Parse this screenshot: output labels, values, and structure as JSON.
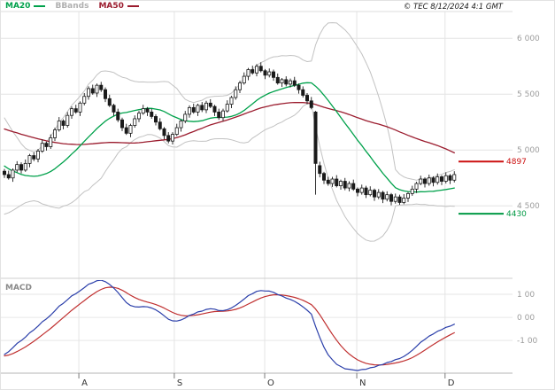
{
  "header": {
    "legend": [
      {
        "label": "MA20",
        "color": "#00a14b"
      },
      {
        "label": "BBands",
        "color": "#b0b0b0"
      },
      {
        "label": "MA50",
        "color": "#9b1c2e"
      }
    ],
    "copyright": "© TEC 8/12/2024 4:1 GMT"
  },
  "chart_data": {
    "type": "candlestick",
    "x_axis": {
      "unit": "month",
      "label_color": "#333333",
      "ticks": [
        {
          "label": "A",
          "index": 17.7
        },
        {
          "label": "S",
          "index": 40.4
        },
        {
          "label": "O",
          "index": 61.9
        },
        {
          "label": "N",
          "index": 83.8
        },
        {
          "label": "D",
          "index": 104.8
        }
      ]
    },
    "y_axis": {
      "range": [
        3875,
        6240
      ],
      "label_color": "#9c9c9c",
      "ticks": [
        {
          "value": 6000,
          "label": "6 000"
        },
        {
          "value": 5500,
          "label": "5 500"
        },
        {
          "value": 5000,
          "label": "5 000"
        },
        {
          "value": 4500,
          "label": "4 500"
        }
      ]
    },
    "levels": [
      {
        "value": 4897,
        "label": "4897",
        "color": "#cc1111"
      },
      {
        "value": 4430,
        "label": "4430",
        "color": "#009944"
      }
    ],
    "overlays": {
      "ma20": {
        "period": 20,
        "color": "#00a14b"
      },
      "ma50": {
        "period": 50,
        "color": "#9b1c2e"
      },
      "bbands": {
        "period": 20,
        "stddev": 2,
        "color": "#c2c2c2"
      }
    },
    "history_closes": [
      5350,
      5380,
      5420,
      5390,
      5440,
      5410,
      5460,
      5430,
      5470,
      5500,
      5480,
      5520,
      5490,
      5530,
      5510,
      5470,
      5440,
      5480,
      5450,
      5420,
      5390,
      5360,
      5400,
      5370,
      5330,
      5300,
      5340,
      5310,
      5270,
      5240,
      5280,
      5250,
      5210,
      5170,
      5130,
      5080,
      5030,
      4980,
      4920,
      4860,
      4800,
      4740,
      4690,
      4650,
      4610,
      4650,
      4620,
      4660,
      4630,
      4670
    ],
    "candles_ohlc": [
      [
        4810,
        4830,
        4750,
        4780
      ],
      [
        4780,
        4815,
        4735,
        4750
      ],
      [
        4750,
        4835,
        4715,
        4820
      ],
      [
        4820,
        4900,
        4800,
        4870
      ],
      [
        4870,
        4890,
        4790,
        4820
      ],
      [
        4820,
        4915,
        4805,
        4880
      ],
      [
        4880,
        4965,
        4845,
        4950
      ],
      [
        4950,
        4980,
        4900,
        4920
      ],
      [
        4920,
        5010,
        4890,
        4990
      ],
      [
        4990,
        5095,
        4975,
        5060
      ],
      [
        5060,
        5075,
        4995,
        5030
      ],
      [
        5030,
        5140,
        5010,
        5110
      ],
      [
        5110,
        5200,
        5080,
        5180
      ],
      [
        5180,
        5295,
        5165,
        5260
      ],
      [
        5260,
        5275,
        5185,
        5220
      ],
      [
        5220,
        5340,
        5200,
        5310
      ],
      [
        5310,
        5390,
        5280,
        5370
      ],
      [
        5370,
        5405,
        5325,
        5340
      ],
      [
        5340,
        5435,
        5305,
        5420
      ],
      [
        5420,
        5510,
        5400,
        5480
      ],
      [
        5480,
        5570,
        5450,
        5550
      ],
      [
        5550,
        5585,
        5495,
        5510
      ],
      [
        5510,
        5595,
        5475,
        5580
      ],
      [
        5580,
        5610,
        5520,
        5540
      ],
      [
        5540,
        5560,
        5430,
        5460
      ],
      [
        5460,
        5495,
        5385,
        5400
      ],
      [
        5400,
        5415,
        5305,
        5340
      ],
      [
        5340,
        5370,
        5250,
        5270
      ],
      [
        5270,
        5290,
        5170,
        5200
      ],
      [
        5200,
        5235,
        5135,
        5150
      ],
      [
        5150,
        5235,
        5115,
        5220
      ],
      [
        5220,
        5310,
        5200,
        5280
      ],
      [
        5280,
        5350,
        5250,
        5330
      ],
      [
        5330,
        5405,
        5315,
        5370
      ],
      [
        5370,
        5385,
        5305,
        5340
      ],
      [
        5340,
        5370,
        5280,
        5300
      ],
      [
        5300,
        5320,
        5220,
        5250
      ],
      [
        5250,
        5285,
        5175,
        5190
      ],
      [
        5190,
        5205,
        5095,
        5130
      ],
      [
        5130,
        5160,
        5060,
        5080
      ],
      [
        5080,
        5160,
        5050,
        5140
      ],
      [
        5140,
        5235,
        5125,
        5200
      ],
      [
        5200,
        5275,
        5165,
        5260
      ],
      [
        5260,
        5350,
        5240,
        5320
      ],
      [
        5320,
        5400,
        5290,
        5380
      ],
      [
        5380,
        5415,
        5325,
        5340
      ],
      [
        5340,
        5415,
        5305,
        5400
      ],
      [
        5400,
        5430,
        5340,
        5360
      ],
      [
        5360,
        5440,
        5330,
        5420
      ],
      [
        5420,
        5455,
        5375,
        5390
      ],
      [
        5390,
        5405,
        5305,
        5340
      ],
      [
        5340,
        5370,
        5270,
        5290
      ],
      [
        5290,
        5370,
        5260,
        5350
      ],
      [
        5350,
        5445,
        5335,
        5410
      ],
      [
        5410,
        5485,
        5375,
        5470
      ],
      [
        5470,
        5570,
        5450,
        5540
      ],
      [
        5540,
        5620,
        5510,
        5600
      ],
      [
        5600,
        5695,
        5585,
        5660
      ],
      [
        5660,
        5735,
        5625,
        5720
      ],
      [
        5720,
        5755,
        5675,
        5690
      ],
      [
        5690,
        5770,
        5660,
        5750
      ],
      [
        5750,
        5785,
        5695,
        5710
      ],
      [
        5710,
        5725,
        5635,
        5670
      ],
      [
        5670,
        5730,
        5650,
        5700
      ],
      [
        5700,
        5720,
        5620,
        5650
      ],
      [
        5650,
        5685,
        5585,
        5600
      ],
      [
        5600,
        5645,
        5565,
        5630
      ],
      [
        5630,
        5660,
        5570,
        5590
      ],
      [
        5590,
        5640,
        5560,
        5620
      ],
      [
        5620,
        5655,
        5565,
        5580
      ],
      [
        5580,
        5595,
        5505,
        5540
      ],
      [
        5540,
        5570,
        5470,
        5490
      ],
      [
        5490,
        5510,
        5410,
        5440
      ],
      [
        5440,
        5475,
        5365,
        5380
      ],
      [
        5340,
        5350,
        4600,
        4880
      ],
      [
        4860,
        4895,
        4755,
        4790
      ],
      [
        4790,
        4805,
        4695,
        4730
      ],
      [
        4730,
        4760,
        4680,
        4700
      ],
      [
        4700,
        4760,
        4670,
        4740
      ],
      [
        4740,
        4775,
        4665,
        4680
      ],
      [
        4680,
        4735,
        4645,
        4720
      ],
      [
        4720,
        4750,
        4640,
        4660
      ],
      [
        4660,
        4720,
        4630,
        4700
      ],
      [
        4700,
        4735,
        4635,
        4650
      ],
      [
        4650,
        4665,
        4585,
        4620
      ],
      [
        4620,
        4690,
        4600,
        4660
      ],
      [
        4660,
        4680,
        4570,
        4600
      ],
      [
        4600,
        4675,
        4585,
        4640
      ],
      [
        4640,
        4655,
        4545,
        4580
      ],
      [
        4580,
        4650,
        4560,
        4620
      ],
      [
        4620,
        4635,
        4525,
        4560
      ],
      [
        4560,
        4630,
        4540,
        4600
      ],
      [
        4600,
        4615,
        4505,
        4540
      ],
      [
        4540,
        4610,
        4520,
        4580
      ],
      [
        4580,
        4600,
        4510,
        4530
      ],
      [
        4530,
        4605,
        4515,
        4570
      ],
      [
        4570,
        4625,
        4535,
        4610
      ],
      [
        4610,
        4680,
        4590,
        4650
      ],
      [
        4650,
        4715,
        4615,
        4700
      ],
      [
        4700,
        4770,
        4685,
        4740
      ],
      [
        4740,
        4755,
        4665,
        4700
      ],
      [
        4700,
        4780,
        4680,
        4750
      ],
      [
        4750,
        4765,
        4675,
        4710
      ],
      [
        4710,
        4790,
        4690,
        4760
      ],
      [
        4760,
        4775,
        4685,
        4720
      ],
      [
        4720,
        4800,
        4700,
        4770
      ],
      [
        4770,
        4785,
        4695,
        4730
      ],
      [
        4730,
        4810,
        4710,
        4780
      ]
    ],
    "macd_panel": {
      "label": "MACD",
      "label_color": "#8a8a8a",
      "fast": 12,
      "slow": 26,
      "signal": 9,
      "macd_color": "#2b3faa",
      "signal_color": "#c03030",
      "range": [
        -230,
        150
      ],
      "ticks": [
        {
          "value": 100,
          "label": "1 00"
        },
        {
          "value": 0,
          "label": "0 00"
        },
        {
          "value": -100,
          "label": "-1 00"
        }
      ]
    }
  }
}
